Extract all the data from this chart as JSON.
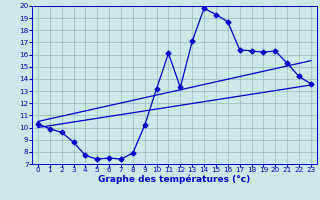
{
  "x": [
    0,
    1,
    2,
    3,
    4,
    5,
    6,
    7,
    8,
    9,
    10,
    11,
    12,
    13,
    14,
    15,
    16,
    17,
    18,
    19,
    20,
    21,
    22,
    23
  ],
  "y_temp": [
    10.3,
    9.9,
    9.6,
    8.8,
    7.7,
    7.4,
    7.5,
    7.4,
    7.9,
    10.2,
    13.2,
    16.1,
    13.3,
    17.1,
    19.8,
    19.3,
    18.7,
    16.4,
    16.3,
    16.2,
    16.3,
    15.3,
    14.2,
    13.6
  ],
  "trend1_x": [
    0,
    23
  ],
  "trend1_y": [
    10.0,
    13.5
  ],
  "trend2_x": [
    0,
    23
  ],
  "trend2_y": [
    10.5,
    15.5
  ],
  "line_color": "#0000cc",
  "marker": "D",
  "markersize": 2.5,
  "background_color": "#cce8e8",
  "grid_color": "#99bbbb",
  "xlabel": "Graphe des températures (°c)",
  "xlabel_fontsize": 6.5,
  "tick_fontsize": 5.2,
  "ylim": [
    7,
    20
  ],
  "xlim": [
    -0.5,
    23.5
  ],
  "yticks": [
    7,
    8,
    9,
    10,
    11,
    12,
    13,
    14,
    15,
    16,
    17,
    18,
    19,
    20
  ],
  "xticks": [
    0,
    1,
    2,
    3,
    4,
    5,
    6,
    7,
    8,
    9,
    10,
    11,
    12,
    13,
    14,
    15,
    16,
    17,
    18,
    19,
    20,
    21,
    22,
    23
  ]
}
